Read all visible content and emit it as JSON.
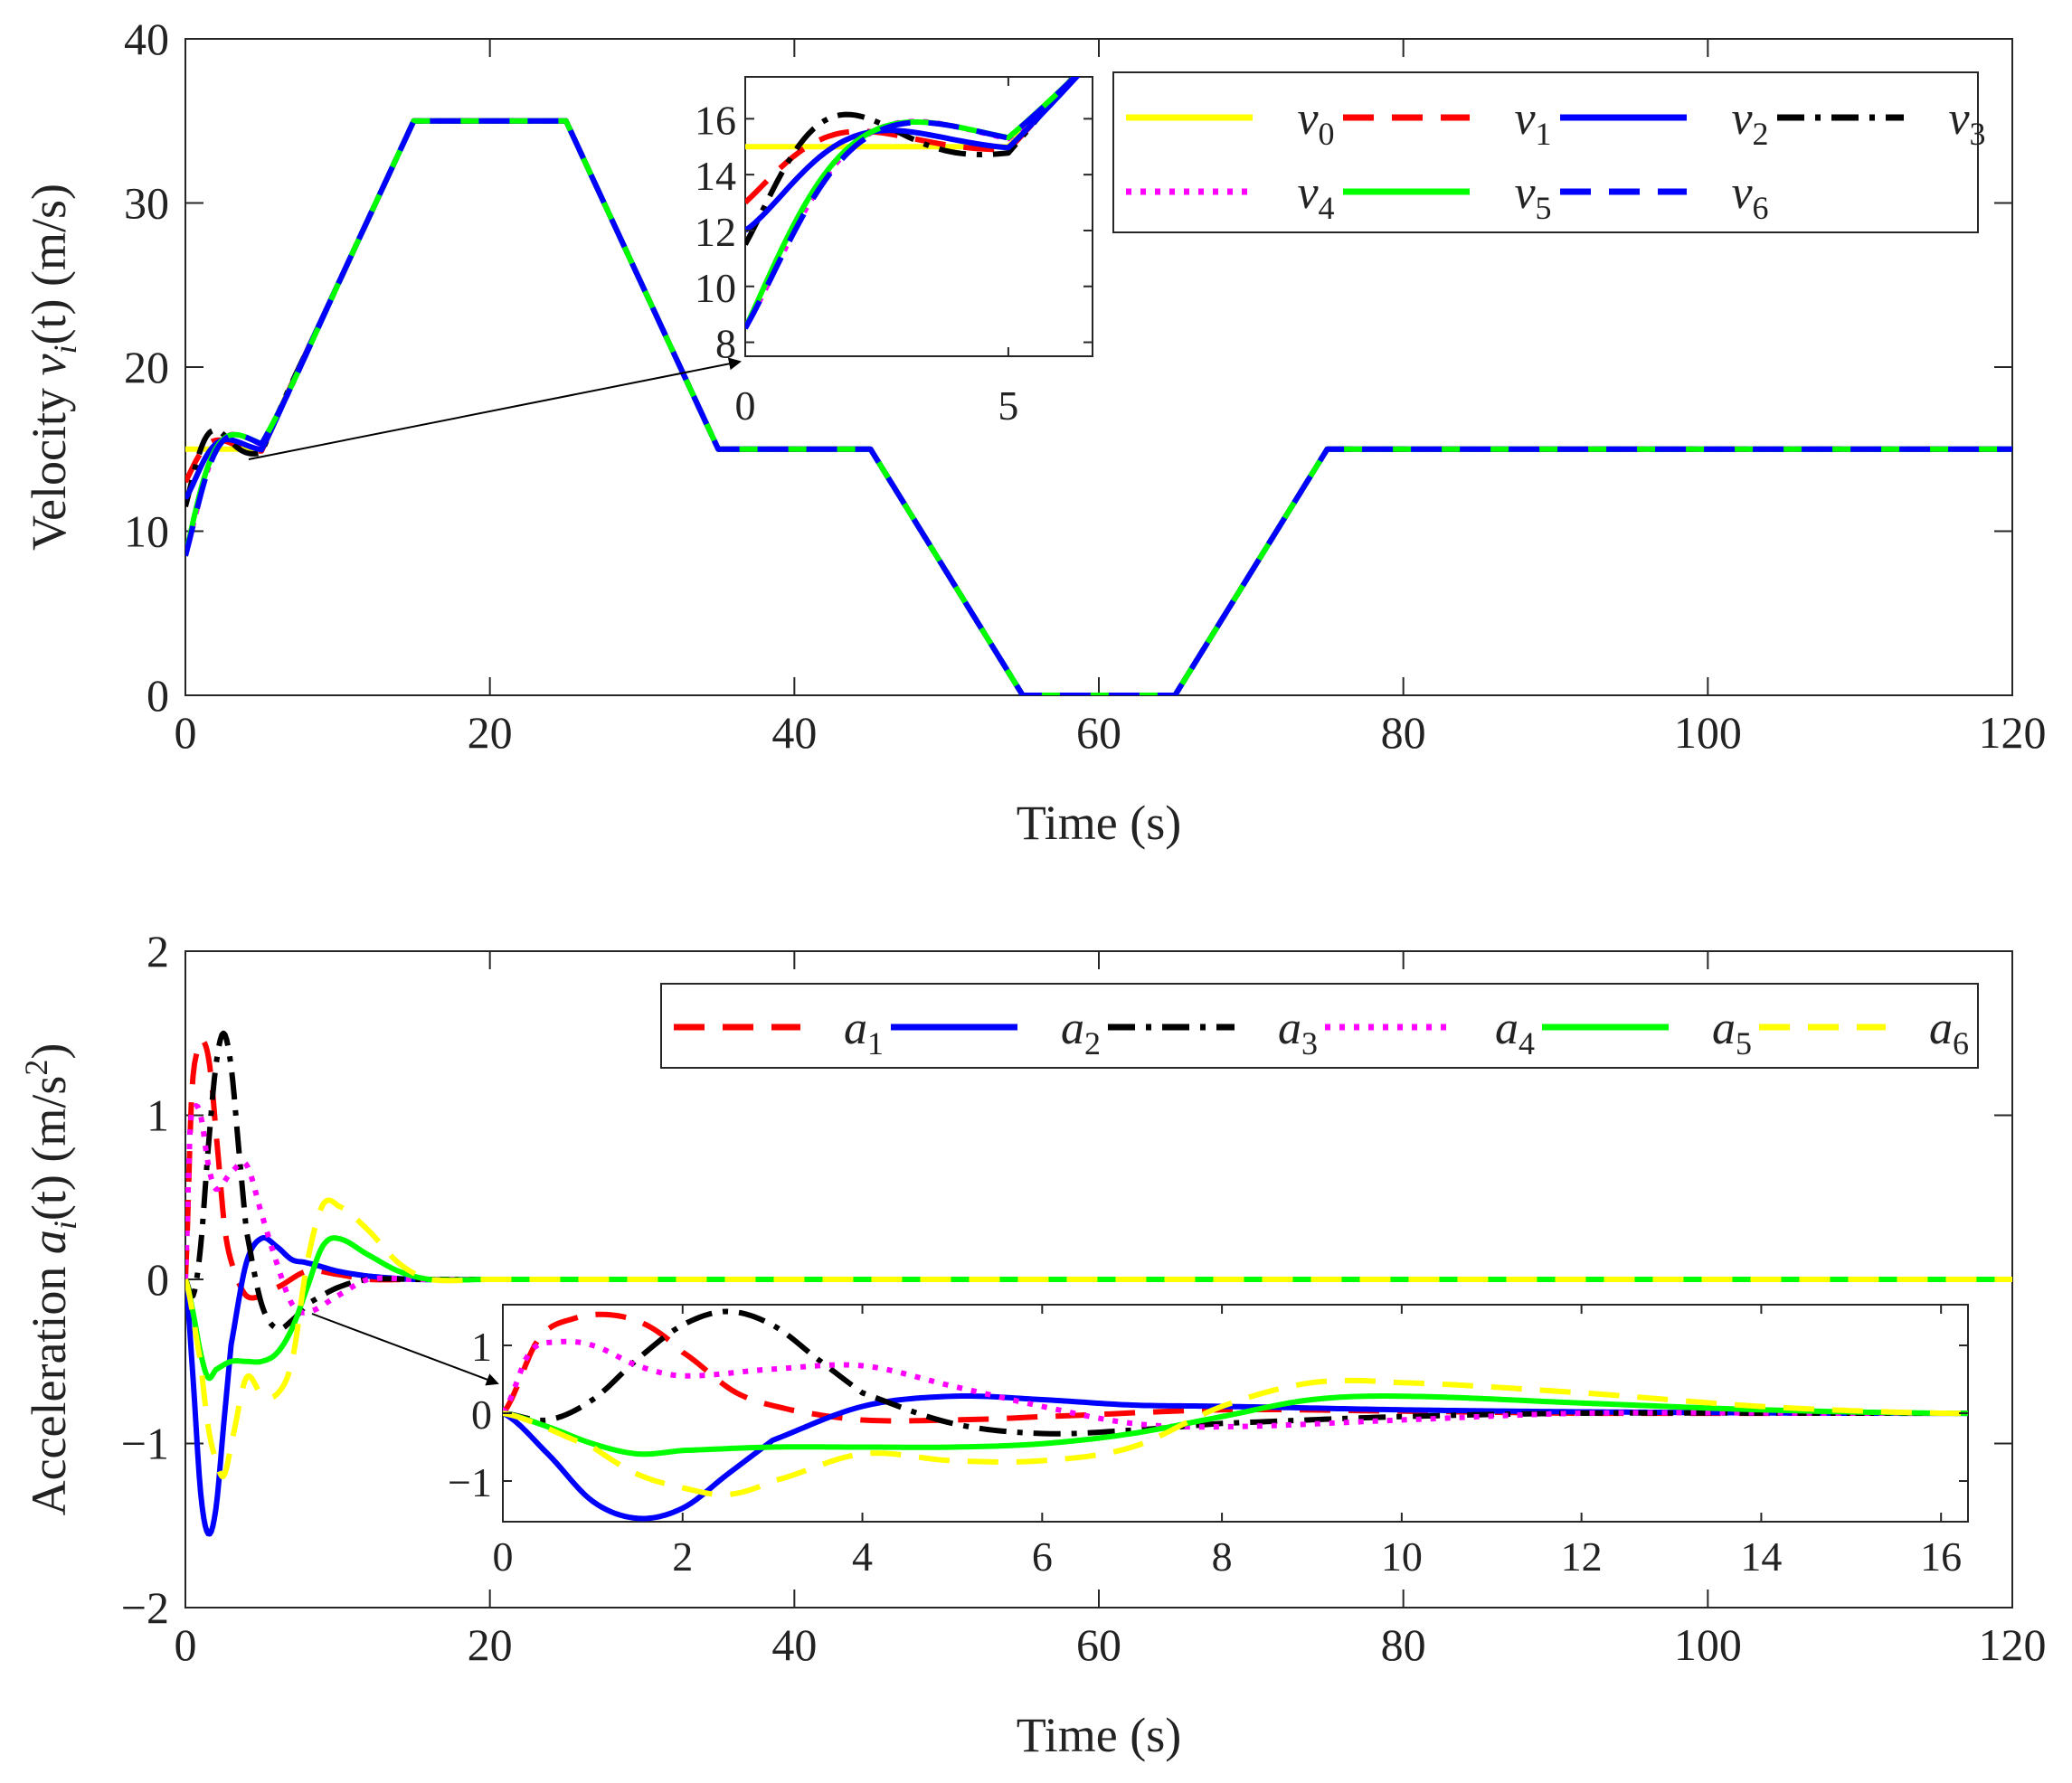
{
  "chart_data": [
    {
      "type": "line",
      "title": "",
      "xlabel": "Time (s)",
      "ylabel": "Velocity v_i(t) (m/s)",
      "ylabel_parts": {
        "pre": "Velocity ",
        "sym": "v",
        "sub": "i",
        "post": "(t) (m/s)"
      },
      "xlim": [
        0,
        120
      ],
      "ylim": [
        0,
        40
      ],
      "xticks": [
        "0",
        "20",
        "40",
        "60",
        "80",
        "100",
        "120"
      ],
      "yticks": [
        "0",
        "10",
        "20",
        "30",
        "40"
      ],
      "grid": false,
      "legend_position": "top-right",
      "reference_profile": {
        "time": [
          0,
          5,
          15,
          25,
          35,
          45,
          55,
          65,
          75,
          120
        ],
        "velocity": [
          15,
          15,
          35,
          35,
          15,
          15,
          0,
          0,
          15,
          15
        ]
      },
      "series": [
        {
          "name": "v0",
          "sym": "v",
          "sub": "0",
          "color": "#ffff00",
          "dash": "solid",
          "initial": 15
        },
        {
          "name": "v1",
          "sym": "v",
          "sub": "1",
          "color": "#ff0000",
          "dash": "dashed",
          "initial": 13
        },
        {
          "name": "v2",
          "sym": "v",
          "sub": "2",
          "color": "#0000ff",
          "dash": "solid",
          "initial": 12
        },
        {
          "name": "v3",
          "sym": "v",
          "sub": "3",
          "color": "#000000",
          "dash": "dashdot",
          "initial": 11.5
        },
        {
          "name": "v4",
          "sym": "v",
          "sub": "4",
          "color": "#ff00ff",
          "dash": "dotted",
          "initial": 8.5
        },
        {
          "name": "v5",
          "sym": "v",
          "sub": "5",
          "color": "#00ff00",
          "dash": "solid",
          "initial": 8.5
        },
        {
          "name": "v6",
          "sym": "v",
          "sub": "6",
          "color": "#0000ff",
          "dash": "dashed",
          "initial": 8.5
        }
      ],
      "inset": {
        "xlim": [
          0,
          6.6
        ],
        "ylim": [
          7.5,
          17.5
        ],
        "xticks": [
          "0",
          "5"
        ],
        "yticks": [
          "8",
          "10",
          "12",
          "14",
          "16"
        ]
      }
    },
    {
      "type": "line",
      "title": "",
      "xlabel": "Time (s)",
      "ylabel": "Acceleration a_i(t) (m/s^2)",
      "ylabel_parts": {
        "pre": "Acceleration ",
        "sym": "a",
        "sub": "i",
        "post": "(t) (m/s",
        "sup": "2",
        "end": ")"
      },
      "xlim": [
        0,
        120
      ],
      "ylim": [
        -2,
        2
      ],
      "xticks": [
        "0",
        "20",
        "40",
        "60",
        "80",
        "100",
        "120"
      ],
      "yticks": [
        "−2",
        "−1",
        "0",
        "1",
        "2"
      ],
      "grid": false,
      "legend_position": "top-right",
      "series": [
        {
          "name": "a1",
          "sym": "a",
          "sub": "1",
          "color": "#ff0000",
          "dash": "dashed",
          "x": [
            0,
            0.4,
            0.8,
            1.2,
            1.6,
            2,
            2.6,
            3.2,
            4,
            5,
            6,
            8,
            10,
            12,
            15,
            20,
            120
          ],
          "y": [
            0,
            1.1,
            1.4,
            1.45,
            1.3,
            0.9,
            0.3,
            0.05,
            -0.1,
            -0.1,
            -0.05,
            0.05,
            0.03,
            0,
            0,
            0,
            0
          ]
        },
        {
          "name": "a2",
          "sym": "a",
          "sub": "2",
          "color": "#0000ff",
          "dash": "solid",
          "x": [
            0,
            0.5,
            1,
            1.5,
            2,
            2.5,
            3,
            4,
            5,
            6,
            7,
            8,
            10,
            12,
            15,
            20,
            120
          ],
          "y": [
            0,
            -0.6,
            -1.3,
            -1.55,
            -1.4,
            -0.9,
            -0.4,
            0.1,
            0.25,
            0.2,
            0.12,
            0.1,
            0.05,
            0.02,
            0,
            0,
            0
          ]
        },
        {
          "name": "a3",
          "sym": "a",
          "sub": "3",
          "color": "#000000",
          "dash": "dashdot",
          "x": [
            0,
            0.5,
            1,
            1.5,
            2,
            2.5,
            3,
            3.5,
            4,
            5,
            6,
            7,
            8,
            10,
            12,
            15,
            20,
            120
          ],
          "y": [
            0,
            -0.1,
            0.2,
            0.8,
            1.3,
            1.5,
            1.3,
            0.8,
            0.3,
            -0.15,
            -0.3,
            -0.25,
            -0.15,
            -0.05,
            0,
            0,
            0,
            0
          ]
        },
        {
          "name": "a4",
          "sym": "a",
          "sub": "4",
          "color": "#ff00ff",
          "dash": "dotted",
          "x": [
            0,
            0.3,
            0.6,
            1,
            1.5,
            2,
            3,
            4,
            5,
            6,
            7,
            8,
            10,
            12,
            15,
            20,
            120
          ],
          "y": [
            0,
            0.9,
            1.05,
            1.0,
            0.7,
            0.55,
            0.65,
            0.7,
            0.4,
            0.1,
            -0.15,
            -0.2,
            -0.1,
            0,
            0,
            0,
            0
          ]
        },
        {
          "name": "a5",
          "sym": "a",
          "sub": "5",
          "color": "#00ff00",
          "dash": "solid",
          "x": [
            0,
            0.5,
            1,
            1.5,
            2,
            3,
            4,
            5,
            6,
            7,
            8,
            9,
            10,
            12,
            14,
            16,
            20,
            120
          ],
          "y": [
            0,
            -0.2,
            -0.45,
            -0.6,
            -0.55,
            -0.5,
            -0.5,
            -0.5,
            -0.45,
            -0.3,
            -0.05,
            0.2,
            0.25,
            0.15,
            0.05,
            0,
            0,
            0
          ]
        },
        {
          "name": "a6",
          "sym": "a",
          "sub": "6",
          "color": "#ffff00",
          "dash": "dashed",
          "x": [
            0,
            1,
            1.5,
            2,
            2.5,
            3,
            4,
            5,
            6,
            7,
            8,
            9,
            10,
            12,
            14,
            16,
            20,
            120
          ],
          "y": [
            0,
            -0.5,
            -0.9,
            -1.1,
            -1.2,
            -1.0,
            -0.6,
            -0.7,
            -0.7,
            -0.5,
            0.1,
            0.45,
            0.45,
            0.3,
            0.1,
            0,
            0,
            0
          ]
        }
      ],
      "inset": {
        "xlim": [
          0,
          16.3
        ],
        "ylim": [
          -1.6,
          1.6
        ],
        "xticks": [
          "0",
          "2",
          "4",
          "6",
          "8",
          "10",
          "12",
          "14",
          "16"
        ],
        "yticks": [
          "−1",
          "0",
          "1"
        ]
      }
    }
  ]
}
